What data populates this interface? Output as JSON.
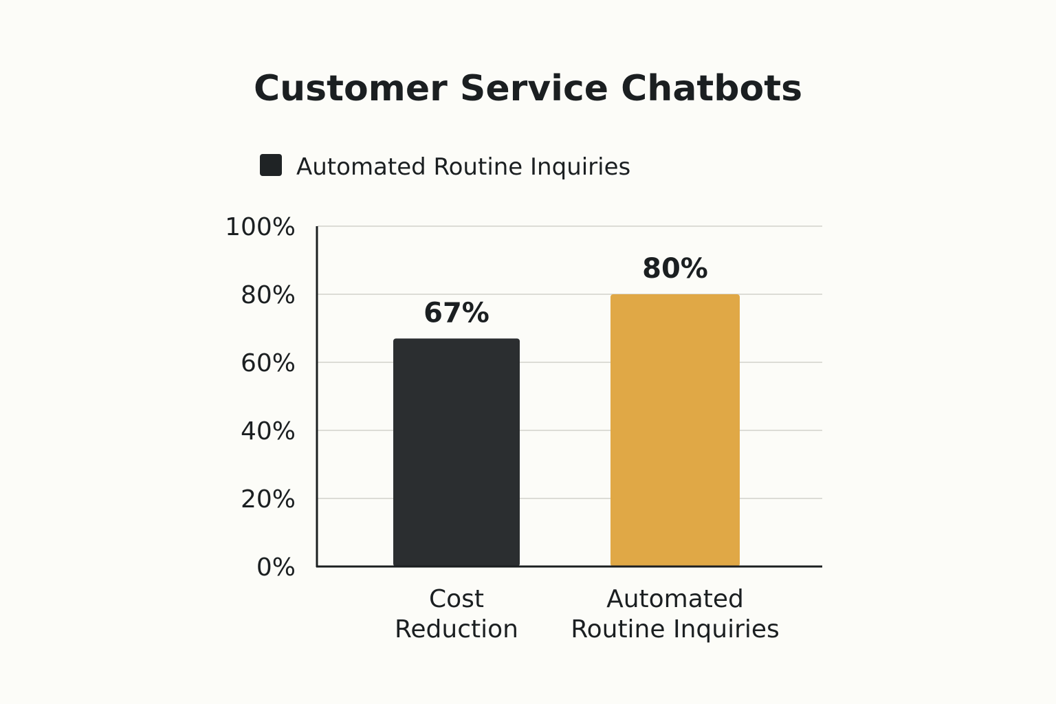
{
  "chart_data": {
    "type": "bar",
    "title": "Customer Service Chatbots",
    "categories": [
      [
        "Cost",
        "Reduction"
      ],
      [
        "Automated",
        "Routine Inquiries"
      ]
    ],
    "series": [
      {
        "name": "Automated Routine Inquiries",
        "values": [
          67,
          80
        ]
      }
    ],
    "value_labels": [
      "67%",
      "80%"
    ],
    "bar_colors": [
      "#2b2e30",
      "#e0a846"
    ],
    "legend": {
      "label": "Automated Routine Inquiries",
      "color": "#1f2325",
      "placement": "top-left"
    },
    "y_ticks": [
      "0%",
      "20%",
      "40%",
      "60%",
      "80%",
      "100%"
    ],
    "ylim": [
      0,
      100
    ],
    "grid": true,
    "grid_color": "#dcdcd6",
    "axis_color": "#1b1f21",
    "text_color": "#1b1f21"
  }
}
